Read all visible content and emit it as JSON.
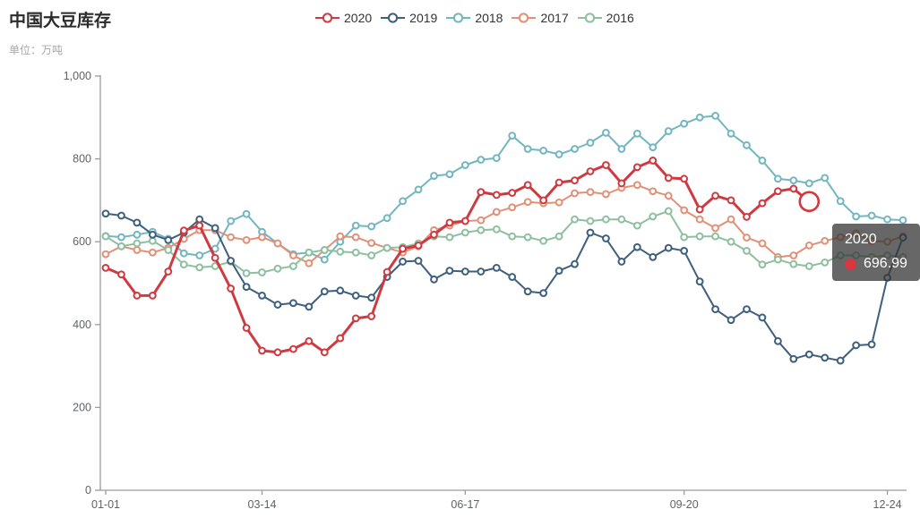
{
  "header": {
    "title": "中国大豆库存",
    "subtitle": "单位：万吨"
  },
  "tooltip": {
    "series_label": "2020",
    "value": "696.99",
    "marker_color": "#d9363e"
  },
  "chart_data": {
    "type": "line",
    "title": "中国大豆库存",
    "unit": "万吨",
    "legend_position": "top-center",
    "grid": false,
    "x_count": 52,
    "x_labels": [
      {
        "index": 0,
        "label": "01-01"
      },
      {
        "index": 10,
        "label": "03-14"
      },
      {
        "index": 23,
        "label": "06-17"
      },
      {
        "index": 37,
        "label": "09-20"
      },
      {
        "index": 50,
        "label": "12-24"
      }
    ],
    "y_axis": {
      "min": 0,
      "max": 1000,
      "interval": 200,
      "ticks": [
        0,
        200,
        400,
        600,
        800,
        1000
      ],
      "tick_labels": [
        "0",
        "200",
        "400",
        "600",
        "800",
        "1,000"
      ]
    },
    "draw_order": [
      "2018",
      "2017",
      "2016",
      "2019",
      "2020"
    ],
    "series": [
      {
        "name": "2020",
        "color": "#cf3a41",
        "line_width": 3,
        "emphasized_last_point": true,
        "values": [
          537,
          521,
          470,
          470,
          528,
          627,
          639,
          561,
          487,
          392,
          337,
          333,
          341,
          360,
          333,
          367,
          415,
          420,
          527,
          583,
          591,
          617,
          646,
          650,
          720,
          713,
          718,
          737,
          700,
          743,
          748,
          770,
          785,
          741,
          780,
          796,
          754,
          752,
          678,
          711,
          700,
          660,
          693,
          722,
          728,
          696.99
        ]
      },
      {
        "name": "2019",
        "color": "#3e5f7d",
        "line_width": 2,
        "emphasized_last_point": false,
        "values": [
          668,
          663,
          646,
          617,
          604,
          622,
          654,
          633,
          554,
          491,
          470,
          448,
          452,
          443,
          480,
          482,
          470,
          465,
          515,
          552,
          554,
          509,
          530,
          528,
          528,
          537,
          515,
          480,
          476,
          530,
          546,
          622,
          608,
          552,
          587,
          563,
          585,
          578,
          504,
          437,
          411,
          437,
          417,
          360,
          317,
          328,
          320,
          313,
          350,
          352,
          513,
          610
        ]
      },
      {
        "name": "2018",
        "color": "#72b6c2",
        "line_width": 2,
        "emphasized_last_point": false,
        "values": [
          614,
          611,
          617,
          624,
          607,
          572,
          567,
          583,
          650,
          667,
          624,
          596,
          570,
          574,
          557,
          600,
          639,
          637,
          657,
          698,
          726,
          759,
          763,
          785,
          798,
          802,
          856,
          824,
          820,
          811,
          824,
          839,
          863,
          824,
          861,
          828,
          867,
          885,
          900,
          904,
          861,
          833,
          796,
          752,
          748,
          741,
          754,
          698,
          661,
          663,
          654,
          652
        ]
      },
      {
        "name": "2017",
        "color": "#e29077",
        "line_width": 2,
        "emphasized_last_point": false,
        "values": [
          570,
          589,
          580,
          574,
          585,
          607,
          628,
          628,
          611,
          604,
          611,
          596,
          567,
          548,
          580,
          613,
          611,
          597,
          585,
          574,
          589,
          628,
          639,
          650,
          652,
          672,
          683,
          696,
          693,
          695,
          717,
          720,
          715,
          730,
          737,
          722,
          711,
          676,
          654,
          633,
          654,
          610,
          596,
          563,
          567,
          591,
          602,
          611,
          620,
          602,
          600,
          613
        ]
      },
      {
        "name": "2016",
        "color": "#8ebf9f",
        "line_width": 2,
        "emphasized_last_point": false,
        "values": [
          613,
          589,
          596,
          602,
          580,
          545,
          538,
          541,
          552,
          524,
          526,
          535,
          541,
          574,
          580,
          576,
          574,
          567,
          585,
          587,
          596,
          613,
          611,
          622,
          628,
          630,
          613,
          611,
          602,
          613,
          654,
          650,
          654,
          654,
          639,
          661,
          674,
          611,
          613,
          613,
          600,
          578,
          545,
          557,
          546,
          541,
          550,
          567,
          567,
          563,
          567,
          563
        ]
      }
    ]
  }
}
